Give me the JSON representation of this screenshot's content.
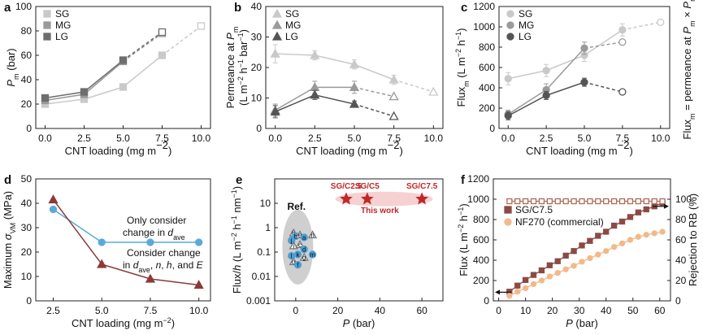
{
  "chart_data": [
    {
      "panel": "a",
      "type": "line",
      "ylabel": "P_m (bar)",
      "xlabel": "CNT loading (mg m-2)",
      "xlim": [
        -0.6,
        10.6
      ],
      "ylim": [
        0,
        100
      ],
      "xticks": [
        "0.0",
        "2.5",
        "5.0",
        "7.5",
        "10.0"
      ],
      "yticks": [
        "0",
        "20",
        "40",
        "60",
        "80",
        "100"
      ],
      "legend": [
        "SG",
        "MG",
        "LG"
      ],
      "series": [
        {
          "name": "SG",
          "color": "#c9c9c9",
          "x": [
            0,
            2.5,
            5,
            7.5,
            10
          ],
          "y": [
            20,
            24,
            34,
            60,
            84
          ],
          "err": [
            2,
            2,
            2,
            2,
            0
          ],
          "solid_upto": 4
        },
        {
          "name": "MG",
          "color": "#9a9a9a",
          "x": [
            0,
            2.5,
            5,
            7.5
          ],
          "y": [
            23,
            28,
            55,
            78
          ],
          "err": [
            2,
            2,
            2,
            0
          ],
          "solid_upto": 3
        },
        {
          "name": "LG",
          "color": "#6e6e6e",
          "x": [
            0,
            2.5,
            5,
            7.5
          ],
          "y": [
            25,
            30,
            56,
            79
          ],
          "err": [
            2,
            2,
            2,
            0
          ],
          "solid_upto": 3
        }
      ]
    },
    {
      "panel": "b",
      "type": "line",
      "ylabel": "Permeance at P_m (L m-2 h-1 bar-1)",
      "xlabel": "CNT loading (mg m-2)",
      "xlim": [
        -0.6,
        10.6
      ],
      "ylim": [
        0,
        40
      ],
      "xticks": [
        "0.0",
        "2.5",
        "5.0",
        "7.5",
        "10.0"
      ],
      "yticks": [
        "0",
        "10",
        "20",
        "30",
        "40"
      ],
      "legend": [
        "SG",
        "MG",
        "LG"
      ],
      "series": [
        {
          "name": "SG",
          "color": "#c9c9c9",
          "x": [
            0,
            2.5,
            5,
            7.5,
            10
          ],
          "y": [
            24.5,
            24,
            21,
            16,
            12
          ],
          "err": [
            3,
            1.5,
            1.5,
            1.5,
            0
          ],
          "solid_upto": 4
        },
        {
          "name": "MG",
          "color": "#9a9a9a",
          "x": [
            0,
            2.5,
            5,
            7.5
          ],
          "y": [
            6,
            13.5,
            13.5,
            10.5
          ],
          "err": [
            2,
            2,
            2,
            0
          ],
          "solid_upto": 3
        },
        {
          "name": "LG",
          "color": "#555555",
          "x": [
            0,
            2.5,
            5,
            7.5
          ],
          "y": [
            5.5,
            11,
            8,
            4
          ],
          "err": [
            2,
            1.5,
            1,
            0
          ],
          "solid_upto": 3
        }
      ]
    },
    {
      "panel": "c",
      "type": "line",
      "ylabel": "Flux_m (L m-2 h-1)",
      "ylabel2": "Flux_m = permeance at P_m × P_m",
      "xlabel": "CNT loading (mg m-2)",
      "xlim": [
        -0.6,
        10.6
      ],
      "ylim": [
        0,
        1200
      ],
      "xticks": [
        "0.0",
        "2.5",
        "5.0",
        "7.5",
        "10.0"
      ],
      "yticks": [
        "0",
        "200",
        "400",
        "600",
        "800",
        "1000",
        "1200"
      ],
      "legend": [
        "SG",
        "MG",
        "LG"
      ],
      "series": [
        {
          "name": "SG",
          "color": "#c9c9c9",
          "x": [
            0,
            2.5,
            5,
            7.5,
            10
          ],
          "y": [
            490,
            570,
            720,
            970,
            1045
          ],
          "err": [
            60,
            60,
            60,
            60,
            0
          ],
          "solid_upto": 4
        },
        {
          "name": "MG",
          "color": "#9a9a9a",
          "x": [
            0,
            2.5,
            5,
            7.5
          ],
          "y": [
            140,
            380,
            790,
            850
          ],
          "err": [
            40,
            60,
            60,
            0
          ],
          "solid_upto": 3
        },
        {
          "name": "LG",
          "color": "#555555",
          "x": [
            0,
            2.5,
            5,
            7.5
          ],
          "y": [
            125,
            325,
            455,
            360
          ],
          "err": [
            40,
            40,
            40,
            0
          ],
          "solid_upto": 3
        }
      ]
    },
    {
      "panel": "d",
      "type": "line",
      "ylabel": "Maximum σ_VM (MPa)",
      "xlabel": "CNT loading (mg m-2)",
      "xlim": [
        1.6,
        10.6
      ],
      "ylim": [
        0,
        50
      ],
      "xticks": [
        "2.5",
        "5.0",
        "7.5",
        "10.0"
      ],
      "yticks": [
        "0",
        "10",
        "20",
        "30",
        "40",
        "50"
      ],
      "series": [
        {
          "name": "Only consider change in d_ave",
          "color": "#5aaad8",
          "x": [
            2.5,
            5,
            7.5,
            10
          ],
          "y": [
            37.5,
            24,
            24,
            24
          ]
        },
        {
          "name": "Consider change in d_ave, n, h, and E",
          "color": "#8b3a3a",
          "x": [
            2.5,
            5,
            7.5,
            10
          ],
          "y": [
            41.5,
            15,
            9,
            6.5
          ]
        }
      ],
      "annotations": [
        "Only consider",
        "change in d_ave",
        "Consider change",
        "in d_ave, n, h, and E"
      ]
    },
    {
      "panel": "e",
      "type": "scatter",
      "ylabel": "Flux/h (L m-2 h-1 nm-1)",
      "xlabel": "P (bar)",
      "xlim": [
        -10,
        70
      ],
      "ylim_log": [
        0.001,
        100
      ],
      "xticks": [
        "0",
        "20",
        "40",
        "60"
      ],
      "yticks": [
        "0.001",
        "0.01",
        "0.1",
        "1",
        "10"
      ],
      "this_work": [
        {
          "x": 24,
          "y": 15,
          "label": "SG/C2.5"
        },
        {
          "x": 34,
          "y": 15,
          "label": "SG/C5"
        },
        {
          "x": 60,
          "y": 15,
          "label": "SG/C7.5"
        }
      ],
      "this_work_label": "This work",
      "ref_label": "Ref.",
      "ref_points": [
        {
          "x": -1,
          "y": 0.6,
          "t": "tri",
          "l": "h"
        },
        {
          "x": 0,
          "y": 0.45,
          "t": "circ",
          "l": "b"
        },
        {
          "x": -2,
          "y": 0.3,
          "t": "circ",
          "l": "j"
        },
        {
          "x": 2,
          "y": 0.5,
          "t": "tri",
          "l": "e"
        },
        {
          "x": 4,
          "y": 0.4,
          "t": "circ",
          "l": "a"
        },
        {
          "x": -1,
          "y": 0.18,
          "t": "tri",
          "l": "i"
        },
        {
          "x": 2,
          "y": 0.2,
          "t": "tri",
          "l": "c"
        },
        {
          "x": 4,
          "y": 0.13,
          "t": "circ",
          "l": "d"
        },
        {
          "x": -2,
          "y": 0.07,
          "t": "circ",
          "l": "l"
        },
        {
          "x": 1,
          "y": 0.08,
          "t": "circ",
          "l": "k"
        },
        {
          "x": 4,
          "y": 0.06,
          "t": "tri",
          "l": "g"
        },
        {
          "x": -1,
          "y": 0.04,
          "t": "tri",
          "l": "o"
        },
        {
          "x": 1,
          "y": 0.03,
          "t": "circ",
          "l": "f"
        },
        {
          "x": 8,
          "y": 0.08,
          "t": "circ",
          "l": "m"
        },
        {
          "x": 8,
          "y": 0.5,
          "t": "tri",
          "l": "n"
        }
      ]
    },
    {
      "panel": "f",
      "type": "line",
      "ylabel": "Flux (L m-2 h-1)",
      "ylabel2": "Rejection to RB (%)",
      "xlabel": "P (bar)",
      "xlim": [
        -2,
        64
      ],
      "ylim": [
        0,
        1200
      ],
      "ylim2": [
        0,
        120
      ],
      "xticks": [
        "0",
        "10",
        "20",
        "30",
        "40",
        "50",
        "60"
      ],
      "yticks": [
        "0",
        "200",
        "400",
        "600",
        "800",
        "1000",
        "1200"
      ],
      "yticks2": [
        "0",
        "20",
        "40",
        "60",
        "80",
        "100"
      ],
      "legend": [
        "SG/C7.5",
        "NF270 (commercial)"
      ],
      "series": [
        {
          "name": "SG/C7.5",
          "color": "#8b4a45",
          "x": [
            4,
            7,
            10,
            13,
            16,
            19,
            22,
            25,
            28,
            31,
            34,
            37,
            40,
            43,
            46,
            49,
            52,
            55,
            58,
            61
          ],
          "y": [
            90,
            150,
            205,
            255,
            300,
            350,
            390,
            445,
            490,
            545,
            590,
            640,
            680,
            740,
            780,
            825,
            870,
            900,
            930,
            965
          ]
        },
        {
          "name": "NF270 (commercial)",
          "color": "#f2b98a",
          "x": [
            4,
            7,
            10,
            13,
            16,
            19,
            22,
            25,
            28,
            31,
            34,
            37,
            40,
            43,
            46,
            49,
            52,
            55,
            58,
            61
          ],
          "y": [
            50,
            90,
            125,
            165,
            200,
            240,
            275,
            310,
            345,
            385,
            420,
            455,
            490,
            530,
            565,
            600,
            630,
            650,
            665,
            680
          ]
        },
        {
          "name": "SG/C7.5 rejection",
          "color": "#b06a5a",
          "axis": "right",
          "x": [
            4,
            7,
            10,
            13,
            16,
            19,
            22,
            25,
            28,
            31,
            34,
            37,
            40,
            43,
            46,
            49,
            52,
            55,
            58,
            61
          ],
          "y": [
            98,
            98,
            98,
            98,
            98,
            98,
            98,
            98,
            98,
            98,
            98,
            98,
            98,
            98,
            98,
            98,
            98,
            98,
            98,
            98
          ]
        }
      ]
    }
  ]
}
